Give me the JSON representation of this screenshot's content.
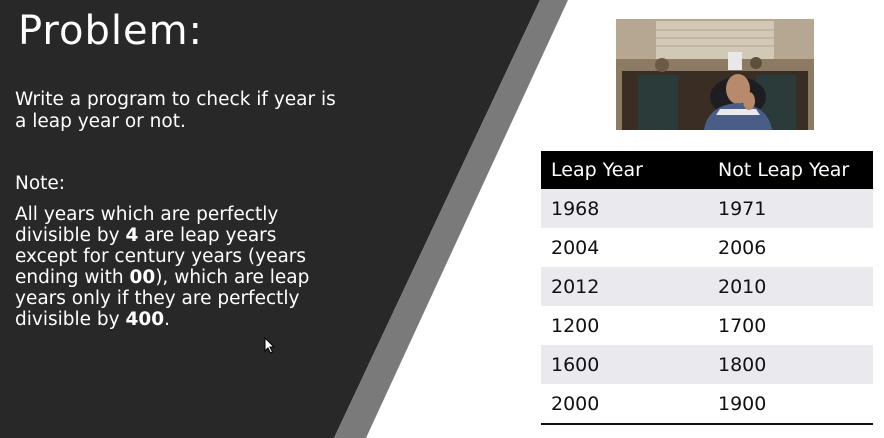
{
  "slide": {
    "title": "Problem:",
    "prompt": "Write a program to check if year is a leap year or not.",
    "note_label": "Note:",
    "note": {
      "part1": "All years which are perfectly divisible by ",
      "bold1": "4",
      "part2": " are leap years except for century years (years ending with ",
      "bold2": "00",
      "part3": "), which are leap years only if they are perfectly divisible by ",
      "bold3": "400",
      "part4": "."
    }
  },
  "table": {
    "headers": [
      "Leap Year",
      "Not Leap Year"
    ],
    "rows": [
      [
        "1968",
        "1971"
      ],
      [
        "2004",
        "2006"
      ],
      [
        "2012",
        "2010"
      ],
      [
        "1200",
        "1700"
      ],
      [
        "1600",
        "1800"
      ],
      [
        "2000",
        "1900"
      ]
    ]
  },
  "colors": {
    "dark_panel": "#282828",
    "stripe": "#7a7a7a",
    "header_bg": "#000000",
    "row_alt": "#e9e9ee"
  },
  "icons": [
    "mouse-cursor-icon"
  ]
}
